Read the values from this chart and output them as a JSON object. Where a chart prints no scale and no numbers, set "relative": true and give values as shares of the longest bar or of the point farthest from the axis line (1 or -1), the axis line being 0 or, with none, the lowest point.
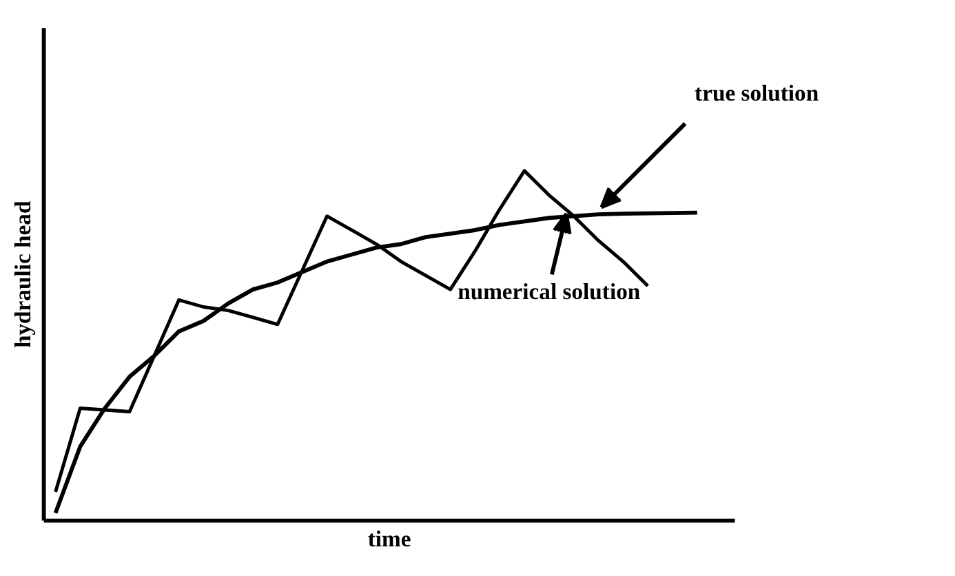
{
  "chart_data": {
    "type": "line",
    "relative": true,
    "xlabel": "time",
    "ylabel": "hydraulic head",
    "marker": "none",
    "categories": [
      null,
      null,
      null,
      null,
      null,
      null,
      null,
      null,
      null,
      null,
      null,
      null,
      null,
      null,
      null,
      null,
      null,
      null,
      null,
      null,
      null,
      null,
      null,
      null,
      null,
      null,
      null,
      null
    ],
    "series": [
      {
        "name": "true solution",
        "color": "#000000",
        "values": [
          0.02,
          0.21,
          0.32,
          0.41,
          0.47,
          0.54,
          0.57,
          0.62,
          0.66,
          0.68,
          0.71,
          0.74,
          0.76,
          0.78,
          0.79,
          0.81,
          0.82,
          0.83,
          0.845,
          0.855,
          0.865,
          0.87,
          0.875,
          0.877,
          0.878,
          0.879,
          0.88,
          null
        ]
      },
      {
        "name": "numerical solution",
        "color": "#000000",
        "values": [
          0.08,
          0.32,
          0.315,
          0.31,
          0.47,
          0.63,
          0.61,
          0.6,
          0.58,
          0.56,
          0.715,
          0.87,
          0.83,
          0.79,
          0.74,
          0.7,
          0.66,
          0.77,
          0.89,
          1.0,
          0.93,
          0.87,
          0.8,
          0.74,
          0.67,
          null,
          null,
          null
        ]
      }
    ]
  }
}
